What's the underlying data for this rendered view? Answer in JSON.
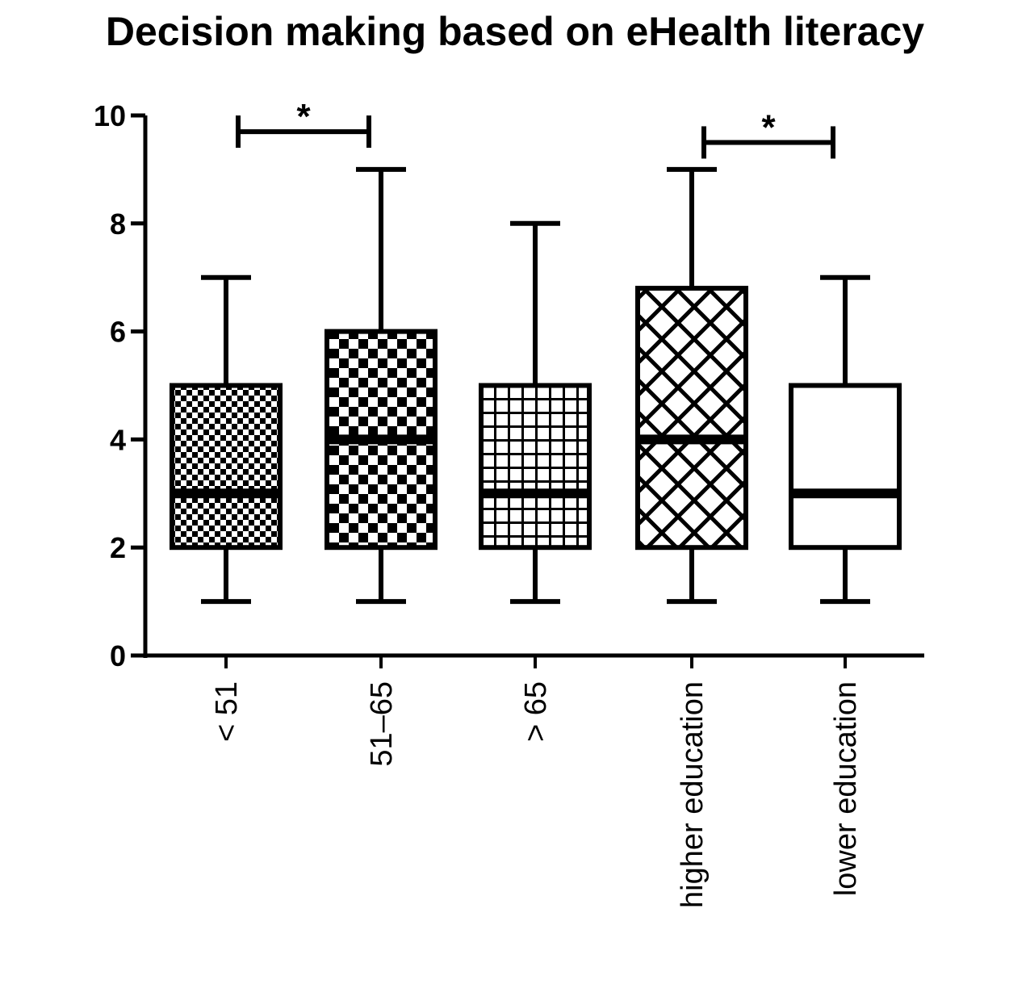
{
  "chart_data": {
    "type": "box",
    "title": "Decision making based on eHealth literacy",
    "xlabel": "",
    "ylabel": "",
    "ylim": [
      0,
      10
    ],
    "yticks": [
      0,
      2,
      4,
      6,
      8,
      10
    ],
    "categories": [
      "< 51",
      "51–65",
      "> 65",
      "higher education",
      "lower education"
    ],
    "boxes": [
      {
        "category": "< 51",
        "min": 1,
        "q1": 2,
        "median": 3,
        "q3": 5,
        "max": 7,
        "pattern": "fine-checker"
      },
      {
        "category": "51–65",
        "min": 1,
        "q1": 2,
        "median": 4,
        "q3": 6,
        "max": 9,
        "pattern": "coarse-checker"
      },
      {
        "category": "> 65",
        "min": 1,
        "q1": 2,
        "median": 3,
        "q3": 5,
        "max": 8,
        "pattern": "grid"
      },
      {
        "category": "higher education",
        "min": 1,
        "q1": 2,
        "median": 4,
        "q3": 6.8,
        "max": 9,
        "pattern": "crosshatch"
      },
      {
        "category": "lower education",
        "min": 1,
        "q1": 2,
        "median": 3,
        "q3": 5,
        "max": 7,
        "pattern": "none"
      }
    ],
    "significance": [
      {
        "from": 0,
        "to": 1,
        "y": 9.7,
        "label": "*"
      },
      {
        "from": 3,
        "to": 4,
        "y": 9.5,
        "label": "*"
      }
    ],
    "grid": false,
    "legend": "none"
  }
}
